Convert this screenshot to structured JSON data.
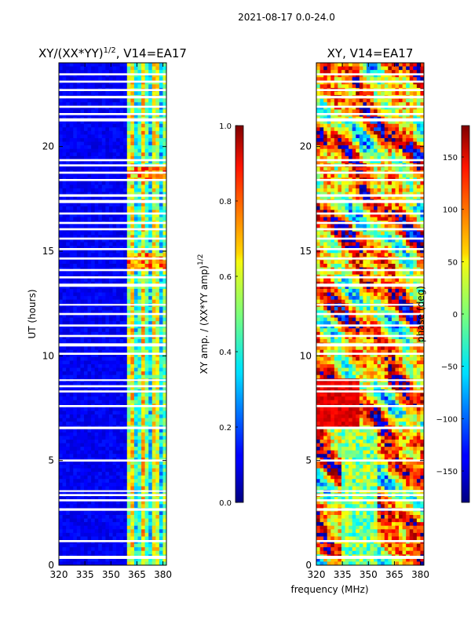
{
  "figure": {
    "suptitle": "2021-08-17 0.0-24.0",
    "shared_xlabel": "frequency (MHz)"
  },
  "chart_data": [
    {
      "type": "heatmap",
      "title_main": "XY/(XX*YY)",
      "title_sup": "1/2",
      "title_tail": ", V14=EA17",
      "ylabel": "UT (hours)",
      "xlabel": "frequency (MHz)",
      "xlim": [
        320,
        382
      ],
      "ylim": [
        0,
        24
      ],
      "xticks": [
        {
          "v": 320,
          "label": "320"
        },
        {
          "v": 335,
          "label": "335"
        },
        {
          "v": 350,
          "label": "350"
        },
        {
          "v": 365,
          "label": "365"
        },
        {
          "v": 380,
          "label": "380"
        }
      ],
      "yticks": [
        {
          "v": 0,
          "label": "0"
        },
        {
          "v": 5,
          "label": "5"
        },
        {
          "v": 10,
          "label": "10"
        },
        {
          "v": 15,
          "label": "15"
        },
        {
          "v": 20,
          "label": "20"
        }
      ],
      "colormap": "jet",
      "colorbar": {
        "label_main": "XY amp. / (XX*YY amp)",
        "label_sup": "1/2",
        "range": [
          0.0,
          1.0
        ],
        "ticks": [
          {
            "v": 0.0,
            "label": "0.0"
          },
          {
            "v": 0.2,
            "label": "0.2"
          },
          {
            "v": 0.4,
            "label": "0.4"
          },
          {
            "v": 0.6,
            "label": "0.6"
          },
          {
            "v": 0.8,
            "label": "0.8"
          },
          {
            "v": 1.0,
            "label": "1.0"
          }
        ]
      },
      "description": "Normalized XY amplitude is low (~0.05-0.15) below 360 MHz and elevated (~0.3-0.7) in striated bands between 360-380 MHz; white horizontal gaps indicate flagged time ranges."
    },
    {
      "type": "heatmap",
      "title_main": "XY, V14=EA17",
      "ylabel": "",
      "xlabel": "frequency (MHz)",
      "xlim": [
        320,
        382
      ],
      "ylim": [
        0,
        24
      ],
      "xticks": [
        {
          "v": 320,
          "label": "320"
        },
        {
          "v": 335,
          "label": "335"
        },
        {
          "v": 350,
          "label": "350"
        },
        {
          "v": 365,
          "label": "365"
        },
        {
          "v": 380,
          "label": "380"
        }
      ],
      "yticks": [
        {
          "v": 0,
          "label": "0"
        },
        {
          "v": 5,
          "label": "5"
        },
        {
          "v": 10,
          "label": "10"
        },
        {
          "v": 15,
          "label": "15"
        },
        {
          "v": 20,
          "label": "20"
        }
      ],
      "colormap": "jet",
      "colorbar": {
        "label_main": "phase (deg)",
        "range": [
          -180,
          180
        ],
        "ticks": [
          {
            "v": -150,
            "label": "−150"
          },
          {
            "v": -100,
            "label": "−100"
          },
          {
            "v": -50,
            "label": "−50"
          },
          {
            "v": 0,
            "label": "0"
          },
          {
            "v": 50,
            "label": "50"
          },
          {
            "v": 100,
            "label": "100"
          },
          {
            "v": 150,
            "label": "150"
          }
        ]
      },
      "description": "XY phase varies strongly with time and frequency, mostly positive (red/orange) with cyan/blue patches; white horizontal gaps indicate flagged time ranges."
    }
  ],
  "flagged_time_ranges_hours": [
    [
      0.3,
      0.45
    ],
    [
      1.1,
      1.2
    ],
    [
      2.6,
      2.72
    ],
    [
      3.05,
      3.15
    ],
    [
      3.3,
      3.4
    ],
    [
      3.5,
      3.58
    ],
    [
      4.95,
      5.05
    ],
    [
      6.5,
      6.62
    ],
    [
      7.55,
      7.65
    ],
    [
      8.25,
      8.35
    ],
    [
      8.5,
      8.6
    ],
    [
      8.8,
      8.88
    ],
    [
      10.05,
      10.15
    ],
    [
      10.45,
      10.6
    ],
    [
      10.9,
      11.0
    ],
    [
      11.4,
      11.5
    ],
    [
      11.95,
      12.05
    ],
    [
      12.4,
      12.48
    ],
    [
      13.3,
      13.45
    ],
    [
      13.7,
      13.8
    ],
    [
      14.05,
      14.15
    ],
    [
      14.6,
      14.7
    ],
    [
      15.05,
      15.15
    ],
    [
      15.55,
      15.65
    ],
    [
      16.0,
      16.1
    ],
    [
      16.3,
      16.4
    ],
    [
      16.75,
      16.85
    ],
    [
      17.3,
      17.45
    ],
    [
      17.6,
      17.72
    ],
    [
      18.35,
      18.45
    ],
    [
      18.7,
      18.8
    ],
    [
      19.05,
      19.15
    ],
    [
      19.3,
      19.4
    ],
    [
      21.2,
      21.35
    ],
    [
      21.5,
      21.6
    ],
    [
      21.85,
      21.95
    ],
    [
      22.3,
      22.42
    ],
    [
      22.65,
      22.75
    ],
    [
      23.05,
      23.15
    ],
    [
      23.4,
      23.5
    ]
  ]
}
